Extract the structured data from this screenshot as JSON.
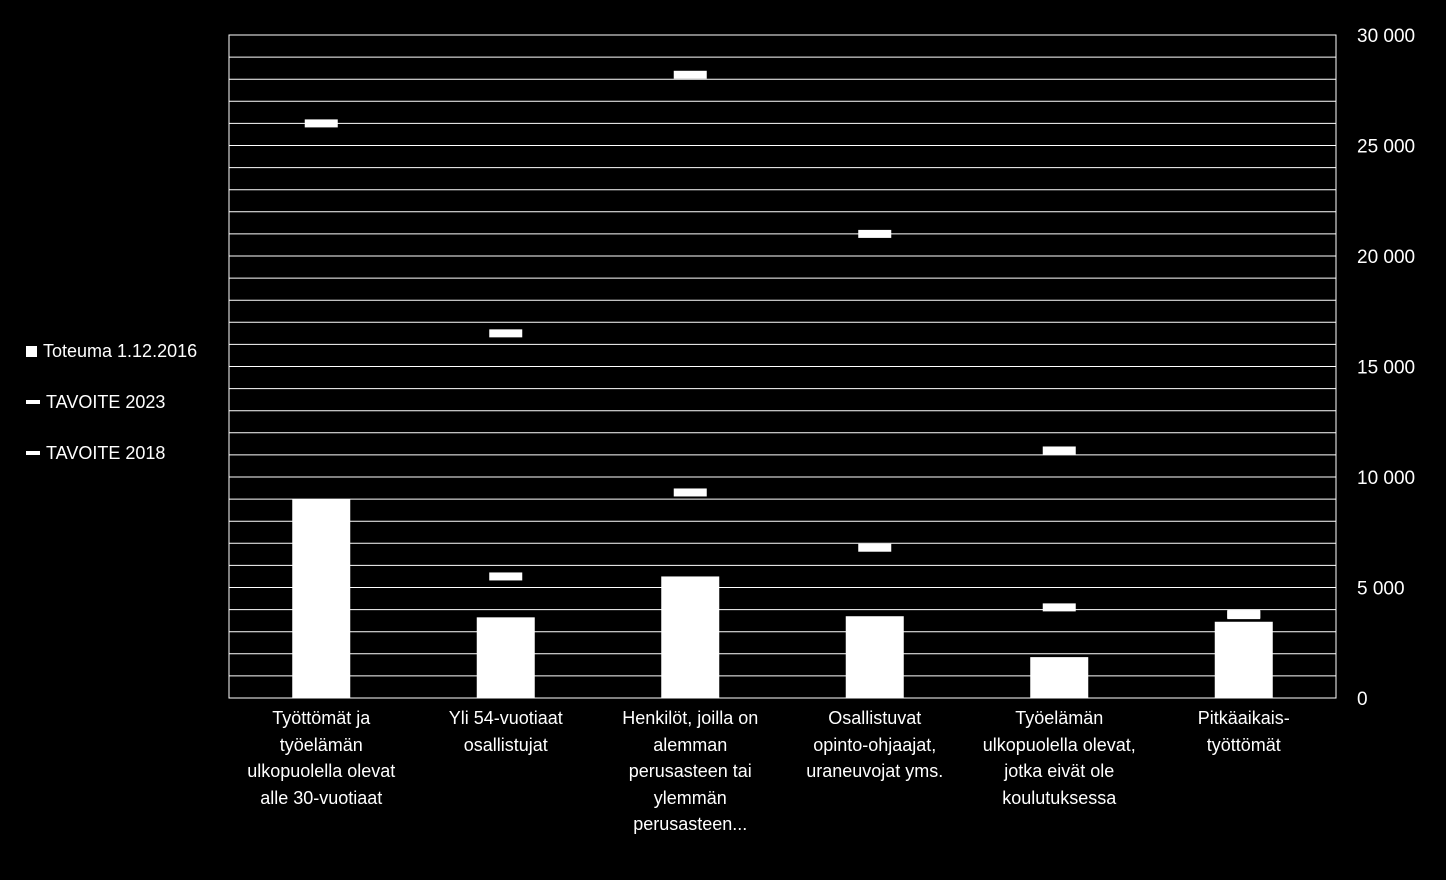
{
  "chart_data": {
    "type": "bar",
    "categories": [
      "Työttömät ja työelämän ulkopuolella olevat alle 30-vuotiaat",
      "Yli 54-vuotiaat osallistujat",
      "Henkilöt, joilla on alemman perusasteen tai ylemmän perusasteen...",
      "Osallistuvat opinto-ohjaajat, uraneuvojat yms.",
      "Työelämän ulkopuolella olevat, jotka eivät ole koulutuksessa",
      "Pitkäaikais-työttömät"
    ],
    "series": [
      {
        "name": "Toteuma 1.12.2016",
        "kind": "bar",
        "values": [
          9000,
          3650,
          5500,
          3700,
          1850,
          3450
        ]
      },
      {
        "name": "TAVOITE 2023",
        "kind": "marker",
        "values": [
          26000,
          16500,
          28200,
          21000,
          11200,
          3800
        ]
      },
      {
        "name": "TAVOITE 2018",
        "kind": "marker",
        "values": [
          null,
          5500,
          9300,
          6800,
          4100,
          3750
        ]
      }
    ],
    "y_axis": {
      "min": 0,
      "max": 30000,
      "major_step": 5000,
      "minor_step": 1000,
      "position": "right",
      "tick_labels": [
        "0",
        "5 000",
        "10 000",
        "15 000",
        "20 000",
        "25 000",
        "30 000"
      ]
    },
    "grid": true,
    "legend_position": "left",
    "colors": {
      "background": "#000000",
      "foreground": "#ffffff"
    }
  },
  "legend": [
    {
      "label": "Toteuma 1.12.2016",
      "marker": "square"
    },
    {
      "label": "TAVOITE 2023",
      "marker": "dash"
    },
    {
      "label": "TAVOITE 2018",
      "marker": "dash"
    }
  ],
  "category_label_lines": [
    [
      "Työttömät ja",
      "työelämän",
      "ulkopuolella olevat",
      "alle 30-vuotiaat"
    ],
    [
      "Yli 54-vuotiaat",
      "osallistujat"
    ],
    [
      "Henkilöt, joilla on",
      "alemman",
      "perusasteen tai",
      "ylemmän",
      "perusasteen..."
    ],
    [
      "Osallistuvat",
      "opinto-ohjaajat,",
      "uraneuvojat yms."
    ],
    [
      "Työelämän",
      "ulkopuolella olevat,",
      "jotka eivät ole",
      "koulutuksessa"
    ],
    [
      "Pitkäaikais-",
      "työttömät"
    ]
  ]
}
